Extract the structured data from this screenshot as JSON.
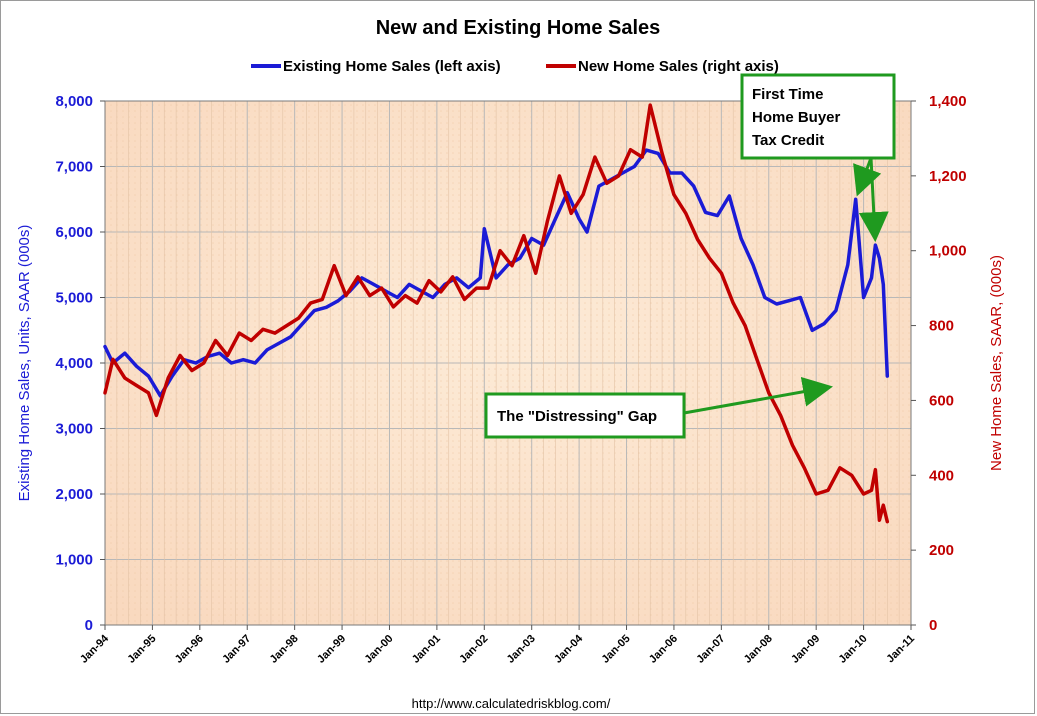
{
  "chart_data": {
    "type": "line",
    "title": "New and Existing Home Sales",
    "left_axis": {
      "label": "Existing Home Sales, Units, SAAR (000s)",
      "ylim": [
        0,
        8000
      ],
      "ticks": [
        "0",
        "1,000",
        "2,000",
        "3,000",
        "4,000",
        "5,000",
        "6,000",
        "7,000",
        "8,000"
      ],
      "tick_values": [
        0,
        1000,
        2000,
        3000,
        4000,
        5000,
        6000,
        7000,
        8000
      ],
      "color": "#1b1bd6"
    },
    "right_axis": {
      "label": "New Home Sales, SAAR, (000s)",
      "ylim": [
        0,
        1400
      ],
      "ticks": [
        "0",
        "200",
        "400",
        "600",
        "800",
        "1,000",
        "1,200",
        "1,400"
      ],
      "tick_values": [
        0,
        200,
        400,
        600,
        800,
        1000,
        1200,
        1400
      ],
      "color": "#c00000"
    },
    "x_ticks": [
      "Jan-94",
      "Jan-95",
      "Jan-96",
      "Jan-97",
      "Jan-98",
      "Jan-99",
      "Jan-00",
      "Jan-01",
      "Jan-02",
      "Jan-03",
      "Jan-04",
      "Jan-05",
      "Jan-06",
      "Jan-07",
      "Jan-08",
      "Jan-09",
      "Jan-10",
      "Jan-11"
    ],
    "x_range": [
      "1994-01",
      "2011-01"
    ],
    "grid": true,
    "legend_position": "top-center",
    "series": [
      {
        "name": "Existing Home Sales (left axis)",
        "axis": "left",
        "color": "#1b1bd6",
        "points": [
          [
            "1994-01",
            4250
          ],
          [
            "1994-03",
            4000
          ],
          [
            "1994-06",
            4150
          ],
          [
            "1994-09",
            3950
          ],
          [
            "1994-12",
            3800
          ],
          [
            "1995-03",
            3500
          ],
          [
            "1995-06",
            3800
          ],
          [
            "1995-09",
            4050
          ],
          [
            "1995-12",
            4000
          ],
          [
            "1996-03",
            4100
          ],
          [
            "1996-06",
            4150
          ],
          [
            "1996-09",
            4000
          ],
          [
            "1996-12",
            4050
          ],
          [
            "1997-03",
            4000
          ],
          [
            "1997-06",
            4200
          ],
          [
            "1997-09",
            4300
          ],
          [
            "1997-12",
            4400
          ],
          [
            "1998-03",
            4600
          ],
          [
            "1998-06",
            4800
          ],
          [
            "1998-09",
            4850
          ],
          [
            "1998-12",
            4950
          ],
          [
            "1999-03",
            5100
          ],
          [
            "1999-06",
            5300
          ],
          [
            "1999-09",
            5200
          ],
          [
            "1999-12",
            5100
          ],
          [
            "2000-03",
            5000
          ],
          [
            "2000-06",
            5200
          ],
          [
            "2000-09",
            5100
          ],
          [
            "2000-12",
            5000
          ],
          [
            "2001-03",
            5200
          ],
          [
            "2001-06",
            5300
          ],
          [
            "2001-09",
            5150
          ],
          [
            "2001-12",
            5300
          ],
          [
            "2002-01",
            6050
          ],
          [
            "2002-04",
            5300
          ],
          [
            "2002-07",
            5500
          ],
          [
            "2002-10",
            5600
          ],
          [
            "2003-01",
            5900
          ],
          [
            "2003-04",
            5800
          ],
          [
            "2003-07",
            6200
          ],
          [
            "2003-10",
            6600
          ],
          [
            "2004-01",
            6200
          ],
          [
            "2004-03",
            6000
          ],
          [
            "2004-06",
            6700
          ],
          [
            "2004-09",
            6800
          ],
          [
            "2004-12",
            6900
          ],
          [
            "2005-03",
            7000
          ],
          [
            "2005-06",
            7250
          ],
          [
            "2005-09",
            7200
          ],
          [
            "2005-12",
            6900
          ],
          [
            "2006-03",
            6900
          ],
          [
            "2006-06",
            6700
          ],
          [
            "2006-09",
            6300
          ],
          [
            "2006-12",
            6250
          ],
          [
            "2007-03",
            6550
          ],
          [
            "2007-06",
            5900
          ],
          [
            "2007-09",
            5500
          ],
          [
            "2007-12",
            5000
          ],
          [
            "2008-03",
            4900
          ],
          [
            "2008-06",
            4950
          ],
          [
            "2008-09",
            5000
          ],
          [
            "2008-12",
            4500
          ],
          [
            "2009-03",
            4600
          ],
          [
            "2009-06",
            4800
          ],
          [
            "2009-09",
            5500
          ],
          [
            "2009-11",
            6500
          ],
          [
            "2010-01",
            5000
          ],
          [
            "2010-03",
            5300
          ],
          [
            "2010-04",
            5800
          ],
          [
            "2010-05",
            5600
          ],
          [
            "2010-06",
            5200
          ],
          [
            "2010-07",
            3800
          ]
        ]
      },
      {
        "name": "New Home Sales (right axis)",
        "axis": "right",
        "color": "#c00000",
        "points": [
          [
            "1994-01",
            620
          ],
          [
            "1994-03",
            710
          ],
          [
            "1994-06",
            660
          ],
          [
            "1994-09",
            640
          ],
          [
            "1994-12",
            620
          ],
          [
            "1995-02",
            560
          ],
          [
            "1995-05",
            660
          ],
          [
            "1995-08",
            720
          ],
          [
            "1995-11",
            680
          ],
          [
            "1996-02",
            700
          ],
          [
            "1996-05",
            760
          ],
          [
            "1996-08",
            720
          ],
          [
            "1996-11",
            780
          ],
          [
            "1997-02",
            760
          ],
          [
            "1997-05",
            790
          ],
          [
            "1997-08",
            780
          ],
          [
            "1997-11",
            800
          ],
          [
            "1998-02",
            820
          ],
          [
            "1998-05",
            860
          ],
          [
            "1998-08",
            870
          ],
          [
            "1998-11",
            960
          ],
          [
            "1999-02",
            880
          ],
          [
            "1999-05",
            930
          ],
          [
            "1999-08",
            880
          ],
          [
            "1999-11",
            900
          ],
          [
            "2000-02",
            850
          ],
          [
            "2000-05",
            880
          ],
          [
            "2000-08",
            860
          ],
          [
            "2000-11",
            920
          ],
          [
            "2001-02",
            890
          ],
          [
            "2001-05",
            930
          ],
          [
            "2001-08",
            870
          ],
          [
            "2001-11",
            900
          ],
          [
            "2002-02",
            900
          ],
          [
            "2002-05",
            1000
          ],
          [
            "2002-08",
            960
          ],
          [
            "2002-11",
            1040
          ],
          [
            "2003-02",
            940
          ],
          [
            "2003-05",
            1080
          ],
          [
            "2003-08",
            1200
          ],
          [
            "2003-11",
            1100
          ],
          [
            "2004-02",
            1150
          ],
          [
            "2004-05",
            1250
          ],
          [
            "2004-08",
            1180
          ],
          [
            "2004-11",
            1200
          ],
          [
            "2005-02",
            1270
          ],
          [
            "2005-05",
            1250
          ],
          [
            "2005-07",
            1389
          ],
          [
            "2005-10",
            1260
          ],
          [
            "2006-01",
            1150
          ],
          [
            "2006-04",
            1100
          ],
          [
            "2006-07",
            1030
          ],
          [
            "2006-10",
            980
          ],
          [
            "2007-01",
            940
          ],
          [
            "2007-04",
            860
          ],
          [
            "2007-07",
            800
          ],
          [
            "2007-10",
            710
          ],
          [
            "2008-01",
            620
          ],
          [
            "2008-04",
            560
          ],
          [
            "2008-07",
            480
          ],
          [
            "2008-10",
            420
          ],
          [
            "2009-01",
            350
          ],
          [
            "2009-04",
            360
          ],
          [
            "2009-07",
            420
          ],
          [
            "2009-10",
            400
          ],
          [
            "2010-01",
            350
          ],
          [
            "2010-03",
            360
          ],
          [
            "2010-04",
            415
          ],
          [
            "2010-05",
            280
          ],
          [
            "2010-06",
            320
          ],
          [
            "2010-07",
            276
          ]
        ]
      }
    ],
    "annotations": [
      {
        "lines": [
          "First Time",
          "Home Buyer",
          "Tax Credit"
        ],
        "targets": [
          [
            "2009-11",
            6500,
            "left"
          ],
          [
            "2010-04",
            5800,
            "left"
          ]
        ]
      },
      {
        "lines": [
          "The \"Distressing\" Gap"
        ],
        "targets": [
          [
            "2009-06",
            3650,
            "left"
          ]
        ]
      }
    ]
  },
  "source": "http://www.calculatedriskblog.com/"
}
